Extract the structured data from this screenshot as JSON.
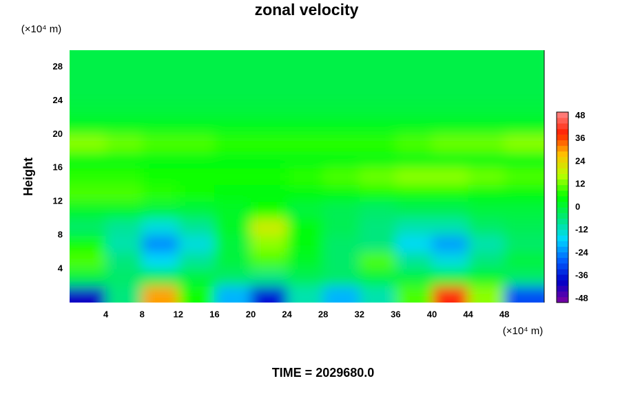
{
  "chart_data": {
    "type": "heatmap",
    "title": "zonal velocity",
    "x_unit": "(×10⁴ m)",
    "y_unit": "(×10⁴ m)",
    "y_label": "Height",
    "footer": "TIME = 2029680.0",
    "xlim": [
      0,
      52.4
    ],
    "ylim": [
      0,
      30
    ],
    "xticks": [
      4,
      8,
      12,
      16,
      20,
      24,
      28,
      32,
      36,
      40,
      44,
      48
    ],
    "yticks": [
      4,
      8,
      12,
      16,
      20,
      24,
      28
    ],
    "x": [
      2,
      6,
      10,
      14,
      18,
      22,
      26,
      30,
      34,
      38,
      42,
      46,
      50
    ],
    "y": [
      1,
      3,
      5,
      7,
      9,
      11,
      13,
      15,
      17,
      19,
      21,
      23,
      25,
      27,
      29
    ],
    "z": [
      [
        -40,
        -6,
        30,
        6,
        -20,
        -36,
        -10,
        -20,
        -10,
        10,
        40,
        14,
        -30
      ],
      [
        0,
        -4,
        -2,
        0,
        -4,
        -6,
        -2,
        -4,
        0,
        0,
        0,
        2,
        -4
      ],
      [
        10,
        -6,
        -16,
        -8,
        0,
        10,
        2,
        -4,
        10,
        -8,
        -14,
        -6,
        0
      ],
      [
        6,
        -10,
        -24,
        -14,
        0,
        14,
        4,
        -4,
        -6,
        -16,
        -22,
        -10,
        -4
      ],
      [
        -4,
        -8,
        -14,
        -8,
        2,
        20,
        4,
        -2,
        -6,
        -10,
        -10,
        -4,
        -2
      ],
      [
        2,
        2,
        0,
        0,
        2,
        6,
        0,
        -2,
        -4,
        -2,
        -2,
        0,
        0
      ],
      [
        10,
        10,
        8,
        6,
        4,
        4,
        4,
        4,
        6,
        6,
        6,
        4,
        4
      ],
      [
        8,
        8,
        6,
        6,
        6,
        6,
        8,
        10,
        12,
        14,
        14,
        12,
        10
      ],
      [
        4,
        4,
        4,
        4,
        4,
        4,
        4,
        4,
        4,
        4,
        4,
        4,
        4
      ],
      [
        14,
        12,
        10,
        10,
        8,
        8,
        8,
        8,
        8,
        10,
        12,
        12,
        14
      ],
      [
        3,
        3,
        3,
        3,
        3,
        3,
        3,
        3,
        3,
        3,
        3,
        3,
        3
      ],
      [
        0,
        0,
        0,
        0,
        0,
        0,
        0,
        0,
        0,
        0,
        0,
        0,
        0
      ],
      [
        -1,
        -1,
        -1,
        -1,
        -1,
        -1,
        -1,
        -1,
        -1,
        -1,
        -1,
        -1,
        -1
      ],
      [
        -1,
        -1,
        -1,
        -1,
        -1,
        -1,
        -1,
        -1,
        -1,
        -1,
        -1,
        -1,
        -1
      ],
      [
        -1,
        -1,
        -1,
        -1,
        -1,
        -1,
        -1,
        -1,
        -1,
        -1,
        -1,
        -1,
        -1
      ]
    ],
    "zlim": [
      -50,
      50
    ],
    "zticks": [
      -48,
      -36,
      -24,
      -12,
      0,
      12,
      24,
      36,
      48
    ],
    "colors": [
      "#8000a0",
      "#0000c8",
      "#0060ff",
      "#00d8ff",
      "#00e878",
      "#00ff00",
      "#b8ff00",
      "#ffc000",
      "#ff2000",
      "#ff8888"
    ]
  }
}
